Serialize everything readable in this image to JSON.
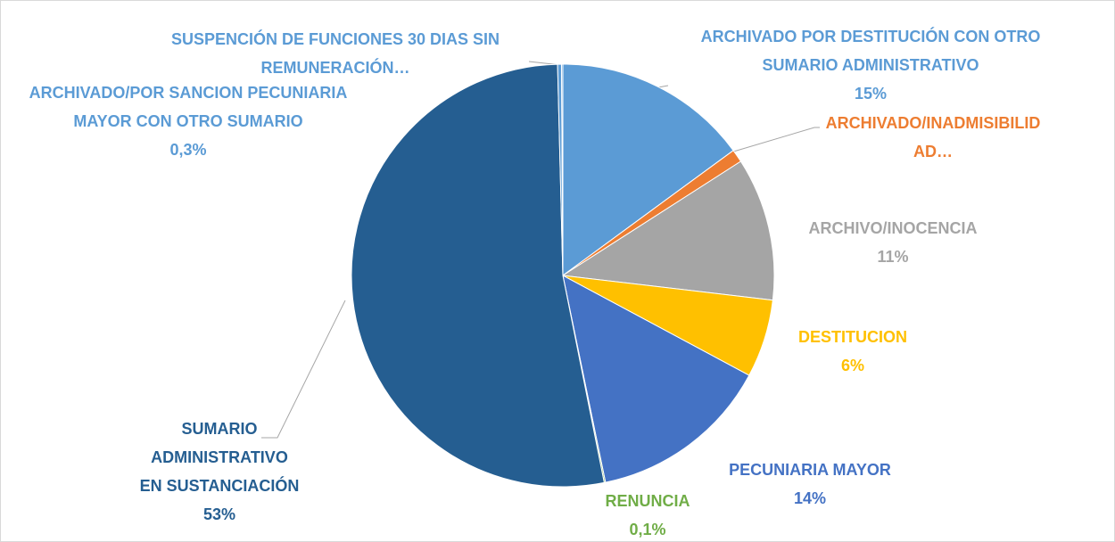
{
  "chart_data": {
    "type": "pie",
    "categories": [
      "ARCHIVADO POR DESTITUCIÓN CON OTRO SUMARIO ADMINISTRATIVO",
      "ARCHIVADO/INADMISIBILIDAD…",
      "ARCHIVO/INOCENCIA",
      "DESTITUCION",
      "PECUNIARIA MAYOR",
      "RENUNCIA",
      "SUMARIO ADMINISTRATIVO EN SUSTANCIACIÓN",
      "ARCHIVADO/POR SANCION PECUNIARIA MAYOR CON OTRO SUMARIO",
      "SUSPENCIÓN DE FUNCIONES 30 DIAS SIN REMUNERACIÓN…"
    ],
    "values": [
      15,
      1,
      11,
      6,
      14,
      0.1,
      53,
      0.3,
      0.1
    ],
    "value_labels": [
      "15%",
      null,
      "11%",
      "6%",
      "14%",
      "0,1%",
      "53%",
      "0,3%",
      null
    ],
    "colors": [
      "#5b9bd5",
      "#ed7d31",
      "#a5a5a5",
      "#ffc000",
      "#4472c4",
      "#70ad47",
      "#255e91",
      "#5b9bd5",
      "#5b9bd5"
    ]
  }
}
